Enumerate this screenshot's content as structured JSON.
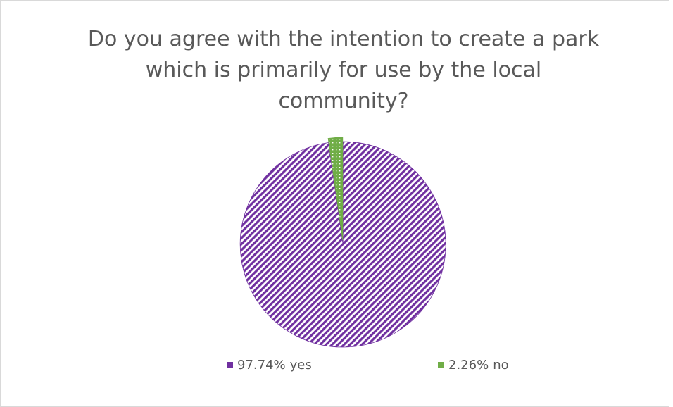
{
  "chart_data": {
    "type": "pie",
    "title": "Do you agree with the intention to create a park which is primarily for use by the local community?",
    "categories": [
      "yes",
      "no"
    ],
    "values": [
      97.74,
      2.26
    ],
    "value_labels": [
      "97.74%",
      "2.26%"
    ],
    "colors": [
      "#7030a0",
      "#70ad47"
    ],
    "legend": "bottom"
  }
}
